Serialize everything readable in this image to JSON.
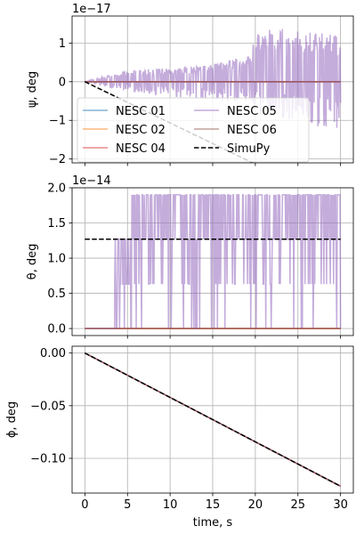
{
  "chart_data": [
    {
      "type": "line",
      "ylabel": "ψ, deg",
      "multiplier": "1e−17",
      "xlim": [
        -1.5,
        31.5
      ],
      "ylim": [
        -2.1,
        1.7
      ],
      "yticks": [
        -2,
        -1,
        0,
        1
      ],
      "ytick_labels": [
        "−2",
        "−1",
        "0",
        "1"
      ],
      "xticks": [
        0,
        5,
        10,
        15,
        20,
        25,
        30
      ],
      "grid": true,
      "legend": {
        "placement": "lower-left",
        "columns": 2,
        "entries": [
          "NESC 01",
          "NESC 02",
          "NESC 04",
          "NESC 05",
          "NESC 06",
          "SimuPy"
        ]
      },
      "series": [
        {
          "name": "NESC 01",
          "color": "#1f77b4",
          "x": [
            0,
            30
          ],
          "y": [
            0,
            0
          ]
        },
        {
          "name": "NESC 02",
          "color": "#ff7f0e",
          "x": [
            0,
            30
          ],
          "y": [
            0,
            0
          ]
        },
        {
          "name": "NESC 04",
          "color": "#d62728",
          "x": [
            0,
            30
          ],
          "y": [
            0,
            0
          ]
        },
        {
          "name": "NESC 05",
          "color": "#9467bd",
          "style": "noisy",
          "x": [
            0,
            5,
            10,
            15,
            19.5,
            20,
            25,
            30
          ],
          "upper": [
            0,
            0.3,
            0.35,
            0.45,
            0.7,
            1.4,
            1.35,
            1.2
          ],
          "lower": [
            0,
            -0.25,
            -0.4,
            -0.5,
            -0.55,
            -0.9,
            -1.0,
            -1.4
          ]
        },
        {
          "name": "NESC 06",
          "color": "#8c564b",
          "x": [
            0,
            30
          ],
          "y": [
            0,
            0
          ]
        },
        {
          "name": "SimuPy",
          "color": "#000000",
          "dashed": true,
          "x": [
            0,
            30
          ],
          "y": [
            0,
            -3.2
          ]
        }
      ]
    },
    {
      "type": "line",
      "ylabel": "θ, deg",
      "multiplier": "1e−14",
      "xlim": [
        -1.5,
        31.5
      ],
      "ylim": [
        -0.1,
        2.0
      ],
      "yticks": [
        0.0,
        0.5,
        1.0,
        1.5,
        2.0
      ],
      "ytick_labels": [
        "0.0",
        "0.5",
        "1.0",
        "1.5",
        "2.0"
      ],
      "xticks": [
        0,
        5,
        10,
        15,
        20,
        25,
        30
      ],
      "grid": true,
      "series": [
        {
          "name": "NESC 01",
          "color": "#1f77b4",
          "x": [
            0,
            30
          ],
          "y": [
            0,
            0
          ]
        },
        {
          "name": "NESC 02",
          "color": "#ff7f0e",
          "x": [
            0,
            30
          ],
          "y": [
            0,
            0
          ]
        },
        {
          "name": "NESC 04",
          "color": "#d62728",
          "x": [
            0,
            30
          ],
          "y": [
            0,
            0
          ]
        },
        {
          "name": "NESC 05",
          "color": "#9467bd",
          "style": "switching",
          "levels": [
            0,
            0.63,
            1.27,
            1.9
          ],
          "start": 3.5,
          "end": 30
        },
        {
          "name": "NESC 06",
          "color": "#8c564b",
          "x": [
            0,
            30
          ],
          "y": [
            0,
            0
          ]
        },
        {
          "name": "SimuPy",
          "color": "#000000",
          "dashed": true,
          "x": [
            0,
            30
          ],
          "y": [
            1.27,
            1.27
          ]
        }
      ]
    },
    {
      "type": "line",
      "ylabel": "ϕ, deg",
      "xlabel": "time, s",
      "xlim": [
        -1.5,
        31.5
      ],
      "ylim": [
        -0.133,
        0.0065
      ],
      "yticks": [
        0.0,
        -0.05,
        -0.1
      ],
      "ytick_labels": [
        "0.00",
        "−0.05",
        "−0.10"
      ],
      "xticks": [
        0,
        5,
        10,
        15,
        20,
        25,
        30
      ],
      "xtick_labels": [
        "0",
        "5",
        "10",
        "15",
        "20",
        "25",
        "30"
      ],
      "grid": true,
      "series": [
        {
          "name": "NESC 01",
          "color": "#1f77b4",
          "x": [
            0,
            30
          ],
          "y": [
            0,
            -0.1265
          ]
        },
        {
          "name": "NESC 02",
          "color": "#ff7f0e",
          "x": [
            0,
            30
          ],
          "y": [
            0,
            -0.1265
          ]
        },
        {
          "name": "NESC 04",
          "color": "#d62728",
          "x": [
            0,
            30
          ],
          "y": [
            0,
            -0.1265
          ]
        },
        {
          "name": "NESC 05",
          "color": "#9467bd",
          "x": [
            0,
            30
          ],
          "y": [
            0,
            -0.1265
          ]
        },
        {
          "name": "NESC 06",
          "color": "#8c564b",
          "x": [
            0,
            30
          ],
          "y": [
            0,
            -0.1265
          ]
        },
        {
          "name": "SimuPy",
          "color": "#000000",
          "dashed": true,
          "x": [
            0,
            30
          ],
          "y": [
            0,
            -0.1265
          ]
        }
      ]
    }
  ]
}
